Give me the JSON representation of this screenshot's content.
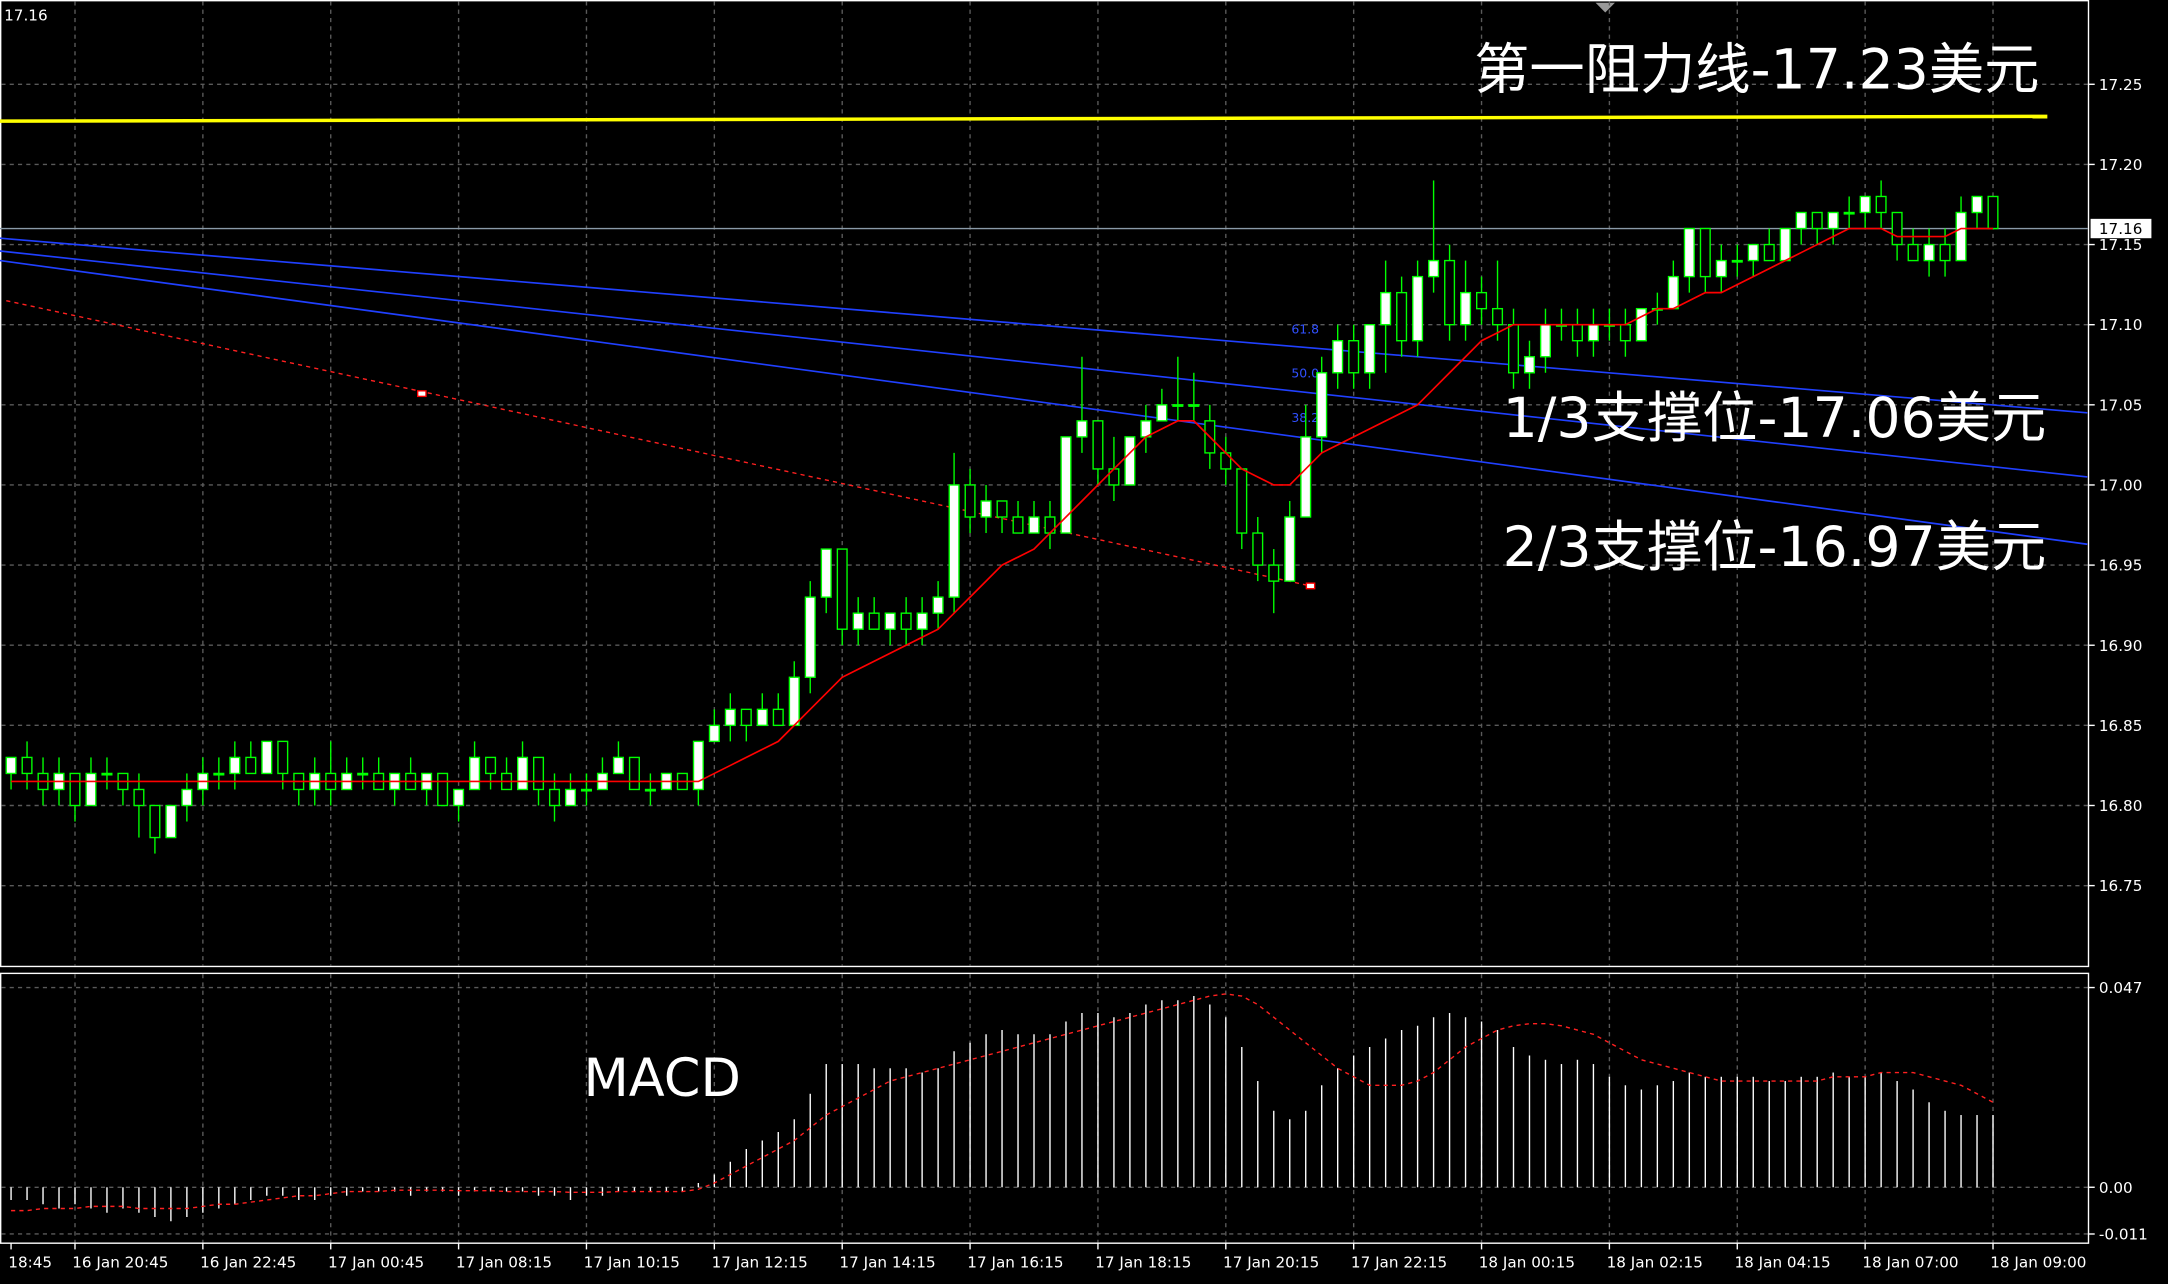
{
  "chart_data": {
    "type": "candlestick",
    "last_price": 17.16,
    "categories": [
      "18:45",
      null,
      null,
      null,
      "16 Jan 20:45",
      null,
      null,
      null,
      null,
      null,
      null,
      null,
      "16 Jan 22:45",
      null,
      null,
      null,
      null,
      null,
      null,
      null,
      "17 Jan 00:45",
      null,
      null,
      null,
      null,
      null,
      null,
      null,
      "17 Jan 08:15",
      null,
      null,
      null,
      null,
      null,
      null,
      null,
      "17 Jan 10:15",
      null,
      null,
      null,
      null,
      null,
      null,
      null,
      "17 Jan 12:15",
      null,
      null,
      null,
      null,
      null,
      null,
      null,
      "17 Jan 14:15",
      null,
      null,
      null,
      null,
      null,
      null,
      null,
      "17 Jan 16:15",
      null,
      null,
      null,
      null,
      null,
      null,
      null,
      "17 Jan 18:15",
      null,
      null,
      null,
      null,
      null,
      null,
      null,
      "17 Jan 20:15",
      null,
      null,
      null,
      null,
      null,
      null,
      null,
      "17 Jan 22:15",
      null,
      null,
      null,
      null,
      null,
      null,
      null,
      "18 Jan 00:15",
      null,
      null,
      null,
      null,
      null,
      null,
      null,
      "18 Jan 02:15",
      null,
      null,
      null,
      null,
      null,
      null,
      null,
      "18 Jan 04:15",
      null,
      null,
      null,
      null,
      null,
      null,
      null,
      "18 Jan 07:00",
      null,
      null,
      null,
      null,
      null,
      null,
      null,
      "18 Jan 09:00"
    ],
    "candles": [
      [
        16.82,
        16.83,
        16.81,
        16.83
      ],
      [
        16.83,
        16.84,
        16.81,
        16.82
      ],
      [
        16.82,
        16.83,
        16.8,
        16.81
      ],
      [
        16.81,
        16.83,
        16.8,
        16.82
      ],
      [
        16.82,
        16.82,
        16.79,
        16.8
      ],
      [
        16.8,
        16.83,
        16.8,
        16.82
      ],
      [
        16.82,
        16.83,
        16.81,
        16.82
      ],
      [
        16.82,
        16.82,
        16.8,
        16.81
      ],
      [
        16.81,
        16.82,
        16.78,
        16.8
      ],
      [
        16.8,
        16.8,
        16.77,
        16.78
      ],
      [
        16.78,
        16.8,
        16.78,
        16.8
      ],
      [
        16.8,
        16.82,
        16.79,
        16.81
      ],
      [
        16.81,
        16.83,
        16.8,
        16.82
      ],
      [
        16.82,
        16.83,
        16.81,
        16.82
      ],
      [
        16.82,
        16.84,
        16.81,
        16.83
      ],
      [
        16.83,
        16.84,
        16.82,
        16.82
      ],
      [
        16.82,
        16.84,
        16.82,
        16.84
      ],
      [
        16.84,
        16.84,
        16.81,
        16.82
      ],
      [
        16.82,
        16.82,
        16.8,
        16.81
      ],
      [
        16.81,
        16.83,
        16.8,
        16.82
      ],
      [
        16.82,
        16.84,
        16.8,
        16.81
      ],
      [
        16.81,
        16.83,
        16.81,
        16.82
      ],
      [
        16.82,
        16.83,
        16.81,
        16.82
      ],
      [
        16.82,
        16.83,
        16.81,
        16.81
      ],
      [
        16.81,
        16.82,
        16.8,
        16.82
      ],
      [
        16.82,
        16.83,
        16.81,
        16.81
      ],
      [
        16.81,
        16.82,
        16.8,
        16.82
      ],
      [
        16.82,
        16.82,
        16.8,
        16.8
      ],
      [
        16.8,
        16.81,
        16.79,
        16.81
      ],
      [
        16.81,
        16.84,
        16.81,
        16.83
      ],
      [
        16.83,
        16.83,
        16.81,
        16.82
      ],
      [
        16.82,
        16.83,
        16.81,
        16.81
      ],
      [
        16.81,
        16.84,
        16.81,
        16.83
      ],
      [
        16.83,
        16.83,
        16.8,
        16.81
      ],
      [
        16.81,
        16.82,
        16.79,
        16.8
      ],
      [
        16.8,
        16.82,
        16.8,
        16.81
      ],
      [
        16.81,
        16.82,
        16.8,
        16.81
      ],
      [
        16.81,
        16.83,
        16.81,
        16.82
      ],
      [
        16.82,
        16.84,
        16.82,
        16.83
      ],
      [
        16.83,
        16.83,
        16.81,
        16.81
      ],
      [
        16.81,
        16.82,
        16.8,
        16.81
      ],
      [
        16.81,
        16.82,
        16.81,
        16.82
      ],
      [
        16.82,
        16.82,
        16.81,
        16.81
      ],
      [
        16.81,
        16.84,
        16.8,
        16.84
      ],
      [
        16.84,
        16.86,
        16.84,
        16.85
      ],
      [
        16.85,
        16.87,
        16.84,
        16.86
      ],
      [
        16.86,
        16.86,
        16.84,
        16.85
      ],
      [
        16.85,
        16.87,
        16.85,
        16.86
      ],
      [
        16.86,
        16.87,
        16.85,
        16.85
      ],
      [
        16.85,
        16.89,
        16.85,
        16.88
      ],
      [
        16.88,
        16.94,
        16.87,
        16.93
      ],
      [
        16.93,
        16.96,
        16.92,
        16.96
      ],
      [
        16.96,
        16.96,
        16.9,
        16.91
      ],
      [
        16.91,
        16.93,
        16.9,
        16.92
      ],
      [
        16.92,
        16.93,
        16.91,
        16.91
      ],
      [
        16.91,
        16.92,
        16.9,
        16.92
      ],
      [
        16.92,
        16.93,
        16.9,
        16.91
      ],
      [
        16.91,
        16.93,
        16.9,
        16.92
      ],
      [
        16.92,
        16.94,
        16.91,
        16.93
      ],
      [
        16.93,
        17.02,
        16.92,
        17.0
      ],
      [
        17.0,
        17.01,
        16.97,
        16.98
      ],
      [
        16.98,
        17.0,
        16.97,
        16.99
      ],
      [
        16.99,
        16.99,
        16.97,
        16.98
      ],
      [
        16.98,
        16.99,
        16.97,
        16.97
      ],
      [
        16.97,
        16.99,
        16.97,
        16.98
      ],
      [
        16.98,
        16.99,
        16.96,
        16.97
      ],
      [
        16.97,
        17.03,
        16.97,
        17.03
      ],
      [
        17.03,
        17.08,
        17.02,
        17.04
      ],
      [
        17.04,
        17.04,
        17.0,
        17.01
      ],
      [
        17.01,
        17.03,
        16.99,
        17.0
      ],
      [
        17.0,
        17.03,
        17.0,
        17.03
      ],
      [
        17.03,
        17.05,
        17.02,
        17.04
      ],
      [
        17.04,
        17.06,
        17.04,
        17.05
      ],
      [
        17.05,
        17.08,
        17.04,
        17.05
      ],
      [
        17.05,
        17.07,
        17.04,
        17.05
      ],
      [
        17.04,
        17.05,
        17.01,
        17.02
      ],
      [
        17.02,
        17.03,
        17.0,
        17.01
      ],
      [
        17.01,
        17.01,
        16.96,
        16.97
      ],
      [
        16.97,
        16.98,
        16.94,
        16.95
      ],
      [
        16.95,
        16.96,
        16.92,
        16.94
      ],
      [
        16.94,
        16.99,
        16.94,
        16.98
      ],
      [
        16.98,
        17.05,
        16.98,
        17.03
      ],
      [
        17.03,
        17.08,
        17.02,
        17.07
      ],
      [
        17.07,
        17.1,
        17.06,
        17.09
      ],
      [
        17.09,
        17.1,
        17.06,
        17.07
      ],
      [
        17.07,
        17.1,
        17.06,
        17.1
      ],
      [
        17.1,
        17.14,
        17.07,
        17.12
      ],
      [
        17.12,
        17.13,
        17.08,
        17.09
      ],
      [
        17.09,
        17.14,
        17.08,
        17.13
      ],
      [
        17.13,
        17.19,
        17.12,
        17.14
      ],
      [
        17.14,
        17.15,
        17.09,
        17.1
      ],
      [
        17.1,
        17.14,
        17.09,
        17.12
      ],
      [
        17.12,
        17.13,
        17.1,
        17.11
      ],
      [
        17.11,
        17.14,
        17.09,
        17.1
      ],
      [
        17.1,
        17.11,
        17.06,
        17.07
      ],
      [
        17.07,
        17.09,
        17.06,
        17.08
      ],
      [
        17.08,
        17.11,
        17.07,
        17.1
      ],
      [
        17.1,
        17.11,
        17.09,
        17.1
      ],
      [
        17.1,
        17.11,
        17.08,
        17.09
      ],
      [
        17.09,
        17.11,
        17.08,
        17.1
      ],
      [
        17.1,
        17.11,
        17.09,
        17.1
      ],
      [
        17.1,
        17.11,
        17.08,
        17.09
      ],
      [
        17.09,
        17.11,
        17.09,
        17.11
      ],
      [
        17.11,
        17.12,
        17.1,
        17.11
      ],
      [
        17.11,
        17.14,
        17.11,
        17.13
      ],
      [
        17.13,
        17.16,
        17.12,
        17.16
      ],
      [
        17.16,
        17.16,
        17.12,
        17.13
      ],
      [
        17.13,
        17.15,
        17.12,
        17.14
      ],
      [
        17.14,
        17.15,
        17.13,
        17.14
      ],
      [
        17.14,
        17.15,
        17.13,
        17.15
      ],
      [
        17.15,
        17.16,
        17.14,
        17.14
      ],
      [
        17.14,
        17.16,
        17.14,
        17.16
      ],
      [
        17.16,
        17.17,
        17.15,
        17.17
      ],
      [
        17.17,
        17.17,
        17.15,
        17.16
      ],
      [
        17.16,
        17.17,
        17.15,
        17.17
      ],
      [
        17.17,
        17.18,
        17.16,
        17.17
      ],
      [
        17.17,
        17.18,
        17.16,
        17.18
      ],
      [
        17.18,
        17.19,
        17.16,
        17.17
      ],
      [
        17.17,
        17.17,
        17.14,
        17.15
      ],
      [
        17.15,
        17.16,
        17.14,
        17.14
      ],
      [
        17.14,
        17.16,
        17.13,
        17.15
      ],
      [
        17.15,
        17.16,
        17.13,
        17.14
      ],
      [
        17.14,
        17.18,
        17.14,
        17.17
      ],
      [
        17.17,
        17.18,
        17.16,
        17.18
      ],
      [
        17.18,
        17.18,
        17.16,
        17.16
      ]
    ],
    "ma": [
      16.815,
      16.815,
      16.815,
      16.815,
      16.815,
      16.815,
      16.815,
      16.815,
      16.815,
      16.815,
      16.815,
      16.815,
      16.815,
      16.815,
      16.815,
      16.815,
      16.815,
      16.815,
      16.815,
      16.815,
      16.815,
      16.815,
      16.815,
      16.815,
      16.815,
      16.815,
      16.815,
      16.815,
      16.815,
      16.815,
      16.815,
      16.815,
      16.815,
      16.815,
      16.815,
      16.815,
      16.815,
      16.815,
      16.815,
      16.815,
      16.815,
      16.815,
      16.815,
      16.815,
      16.82,
      16.825,
      16.83,
      16.835,
      16.84,
      16.85,
      16.86,
      16.87,
      16.88,
      16.885,
      16.89,
      16.895,
      16.9,
      16.905,
      16.91,
      16.92,
      16.93,
      16.94,
      16.95,
      16.955,
      16.96,
      16.97,
      16.98,
      16.99,
      17.0,
      17.01,
      17.02,
      17.03,
      17.035,
      17.04,
      17.04,
      17.03,
      17.02,
      17.01,
      17.005,
      17.0,
      17.0,
      17.01,
      17.02,
      17.025,
      17.03,
      17.035,
      17.04,
      17.045,
      17.05,
      17.06,
      17.07,
      17.08,
      17.09,
      17.095,
      17.1,
      17.1,
      17.1,
      17.1,
      17.1,
      17.1,
      17.1,
      17.1,
      17.105,
      17.11,
      17.11,
      17.115,
      17.12,
      17.12,
      17.125,
      17.13,
      17.135,
      17.14,
      17.145,
      17.15,
      17.155,
      17.16,
      17.16,
      17.16,
      17.155,
      17.155,
      17.155,
      17.155,
      17.16,
      17.16,
      17.16
    ],
    "ylim": [
      16.7,
      17.3
    ],
    "yticks": [
      16.75,
      {
        "value": 16.8,
        "label": "16.80"
      },
      16.85,
      {
        "value": 16.9,
        "label": "16.90"
      },
      16.95,
      {
        "value": 17.0,
        "label": "17.00"
      },
      17.05,
      {
        "value": 17.1,
        "label": "17.10"
      },
      17.15,
      {
        "value": 17.2,
        "label": "17.20"
      },
      17.25
    ],
    "grid": true,
    "up_color": "#ffffff",
    "down_color": "#000000",
    "candle_color": "#00ff00",
    "ma_color": "#ff0000",
    "resistance": {
      "color": "#ffff00",
      "x": [
        -0.7,
        127.4
      ],
      "y": [
        17.227,
        17.23
      ]
    },
    "trendlines": [
      {
        "color": "#2040ff",
        "x": [
          -0.7,
          129.9
        ],
        "y": [
          17.154,
          17.045
        ]
      },
      {
        "color": "#2040ff",
        "x": [
          -0.7,
          129.9
        ],
        "y": [
          17.146,
          17.005
        ]
      },
      {
        "color": "#2040ff",
        "x": [
          -0.7,
          129.9
        ],
        "y": [
          17.14,
          16.963
        ]
      }
    ],
    "dashed_line": {
      "color": "#ff2020",
      "x": [
        -0.3,
        81.3
      ],
      "y": [
        17.115,
        16.937
      ]
    },
    "points": {
      "x": [
        25.7,
        81.3
      ],
      "y": [
        17.057,
        16.937
      ]
    },
    "fib_labels": [
      "61.8",
      "50.0",
      "38.2"
    ],
    "annotations": [
      "第一阻力线-17.23美元",
      "1/3支撑位-17.06美元",
      "2/3支撑位-16.97美元"
    ],
    "macd": {
      "label": "MACD",
      "ylim": [
        -0.013,
        0.0505
      ],
      "yticks": [
        -0.011,
        {
          "value": 0,
          "label": "0.00"
        },
        0.047
      ],
      "histogram": [
        -0.003,
        -0.003,
        -0.004,
        -0.005,
        -0.004,
        -0.005,
        -0.006,
        -0.005,
        -0.006,
        -0.007,
        -0.008,
        -0.007,
        -0.006,
        -0.005,
        -0.004,
        -0.003,
        -0.002,
        -0.002,
        -0.003,
        -0.003,
        -0.002,
        -0.002,
        -0.001,
        -0.001,
        -0.001,
        -0.002,
        -0.001,
        -0.001,
        -0.002,
        -0.001,
        -0.001,
        -0.001,
        -0.001,
        -0.002,
        -0.002,
        -0.003,
        -0.002,
        -0.002,
        -0.001,
        -0.001,
        -0.001,
        -0.001,
        -0.001,
        0.001,
        0.003,
        0.006,
        0.009,
        0.011,
        0.013,
        0.016,
        0.022,
        0.029,
        0.029,
        0.029,
        0.028,
        0.028,
        0.028,
        0.027,
        0.028,
        0.032,
        0.034,
        0.036,
        0.037,
        0.036,
        0.036,
        0.036,
        0.039,
        0.041,
        0.041,
        0.04,
        0.041,
        0.043,
        0.044,
        0.044,
        0.045,
        0.043,
        0.04,
        0.033,
        0.025,
        0.018,
        0.016,
        0.018,
        0.024,
        0.028,
        0.031,
        0.033,
        0.035,
        0.037,
        0.038,
        0.04,
        0.041,
        0.04,
        0.039,
        0.037,
        0.033,
        0.031,
        0.03,
        0.029,
        0.03,
        0.029,
        0.026,
        0.024,
        0.023,
        0.024,
        0.025,
        0.027,
        0.026,
        0.026,
        0.026,
        0.026,
        0.025,
        0.025,
        0.026,
        0.026,
        0.027,
        0.026,
        0.026,
        0.027,
        0.025,
        0.023,
        0.02,
        0.018,
        0.017,
        0.017,
        0.017
      ],
      "signal": [
        -0.0055,
        -0.0055,
        -0.005,
        -0.005,
        -0.005,
        -0.0045,
        -0.0045,
        -0.0045,
        -0.005,
        -0.005,
        -0.005,
        -0.005,
        -0.0045,
        -0.004,
        -0.004,
        -0.0035,
        -0.003,
        -0.0025,
        -0.002,
        -0.002,
        -0.0015,
        -0.001,
        -0.001,
        -0.001,
        -0.0007,
        -0.0007,
        -0.0007,
        -0.0007,
        -0.0008,
        -0.0008,
        -0.0008,
        -0.001,
        -0.001,
        -0.001,
        -0.001,
        -0.0012,
        -0.0012,
        -0.0012,
        -0.001,
        -0.001,
        -0.001,
        -0.001,
        -0.001,
        -0.0005,
        0.001,
        0.003,
        0.005,
        0.007,
        0.009,
        0.011,
        0.014,
        0.017,
        0.019,
        0.021,
        0.023,
        0.025,
        0.026,
        0.027,
        0.028,
        0.029,
        0.03,
        0.031,
        0.032,
        0.033,
        0.034,
        0.035,
        0.036,
        0.037,
        0.038,
        0.039,
        0.04,
        0.041,
        0.042,
        0.043,
        0.044,
        0.045,
        0.0455,
        0.045,
        0.043,
        0.04,
        0.037,
        0.034,
        0.031,
        0.028,
        0.026,
        0.024,
        0.024,
        0.024,
        0.025,
        0.027,
        0.03,
        0.033,
        0.035,
        0.037,
        0.038,
        0.0385,
        0.0385,
        0.038,
        0.037,
        0.036,
        0.034,
        0.032,
        0.03,
        0.029,
        0.028,
        0.027,
        0.026,
        0.025,
        0.025,
        0.025,
        0.025,
        0.025,
        0.025,
        0.025,
        0.026,
        0.026,
        0.026,
        0.027,
        0.027,
        0.027,
        0.026,
        0.025,
        0.024,
        0.022,
        0.02
      ],
      "signal_color": "#ff2020",
      "histogram_color": "#ffffff"
    }
  }
}
